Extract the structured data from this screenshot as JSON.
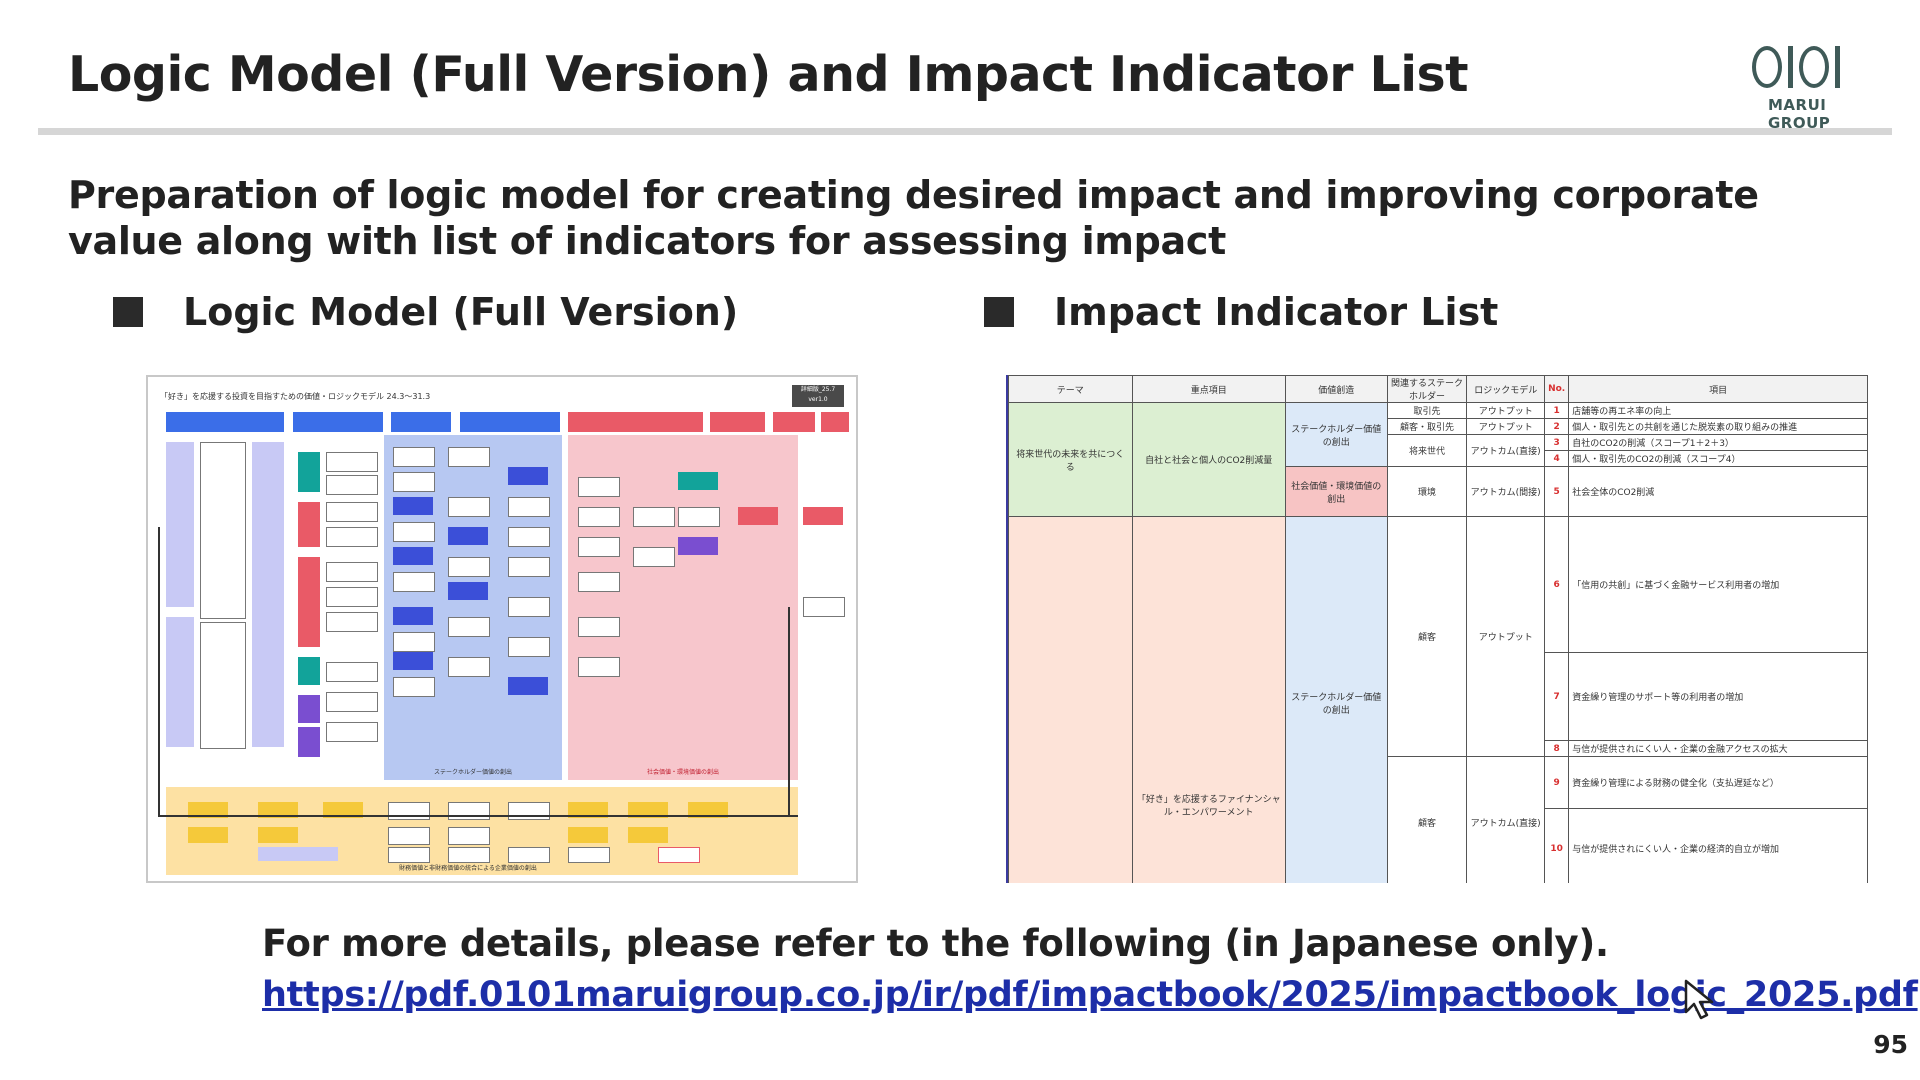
{
  "header": {
    "title": "Logic Model (Full Version) and Impact Indicator List",
    "logo_text": "MARUI GROUP"
  },
  "subtitle": "Preparation of logic model for creating desired impact and improving corporate value along with list of indicators for assessing impact",
  "sections": {
    "logic_model": "Logic Model (Full Version)",
    "impact_list": "Impact Indicator List"
  },
  "logic_model_image": {
    "caption": "「好き」を応援する投資を目指すための価値・ロジックモデル 24.3～31.3",
    "badge": "詳細版_25.7 ver1.0",
    "band_left_label": "ステークホルダー価値の創出",
    "band_right_label": "社会価値・環境価値の創出",
    "band_bottom_label": "財務価値と非財務価値の統合による企業価値の創出"
  },
  "impact_table": {
    "headers": [
      "テーマ",
      "重点項目",
      "価値創造",
      "関連するステークホルダー",
      "ロジックモデル",
      "No.",
      "項目"
    ],
    "theme1": "将来世代の未来を共につくる",
    "focus1": "自社と社会と個人のCO2削減量",
    "value1a": "ステークホルダー価値の創出",
    "value1b": "社会価値・環境価値の創出",
    "theme2": "",
    "focus2": "「好き」を応援するファイナンシャル・エンパワーメント",
    "value2": "ステークホルダー価値の創出",
    "rows": [
      {
        "stakeholder": "取引先",
        "logic": "アウトプット",
        "no": "1",
        "item": "店舗等の再エネ率の向上"
      },
      {
        "stakeholder": "顧客・取引先",
        "logic": "アウトプット",
        "no": "2",
        "item": "個人・取引先との共創を通じた脱炭素の取り組みの推進"
      },
      {
        "stakeholder": "将来世代",
        "logic": "アウトカム(直接)",
        "no": "3",
        "item": "自社のCO2の削減（スコープ1＋2＋3）"
      },
      {
        "stakeholder": "",
        "logic": "",
        "no": "4",
        "item": "個人・取引先のCO2の削減（スコープ4）"
      },
      {
        "stakeholder": "環境",
        "logic": "アウトカム(間接)",
        "no": "5",
        "item": "社会全体のCO2削減"
      },
      {
        "stakeholder": "顧客",
        "logic": "アウトプット",
        "no": "6",
        "item": "「信用の共創」に基づく金融サービス利用者の増加"
      },
      {
        "stakeholder": "",
        "logic": "",
        "no": "7",
        "item": "資金繰り管理のサポート等の利用者の増加"
      },
      {
        "stakeholder": "",
        "logic": "",
        "no": "8",
        "item": "与信が提供されにくい人・企業の金融アクセスの拡大"
      },
      {
        "stakeholder": "顧客",
        "logic": "アウトカム(直接)",
        "no": "9",
        "item": "資金繰り管理による財務の健全化（支払遅延など）"
      },
      {
        "stakeholder": "",
        "logic": "",
        "no": "10",
        "item": "与信が提供されにくい人・企業の経済的自立が増加"
      }
    ]
  },
  "footer": {
    "more_details": "For more details, please refer to the following (in Japanese only).",
    "url": "https://pdf.0101maruigroup.co.jp/ir/pdf/impactbook/2025/impactbook_logic_2025.pdf",
    "page_number": "95"
  },
  "colors": {
    "link": "#1d2ea8",
    "band_blue": "#b7c8f2",
    "band_pink": "#f7c6cc",
    "band_yellow": "#fde1a3",
    "theme_green": "#dcefd2",
    "theme_peach": "#fde3d8",
    "value_blue": "#dce9f8",
    "value_pink": "#f7c4c4"
  },
  "icons": [
    "cursor-arrow-icon",
    "bullet-square-icon"
  ]
}
